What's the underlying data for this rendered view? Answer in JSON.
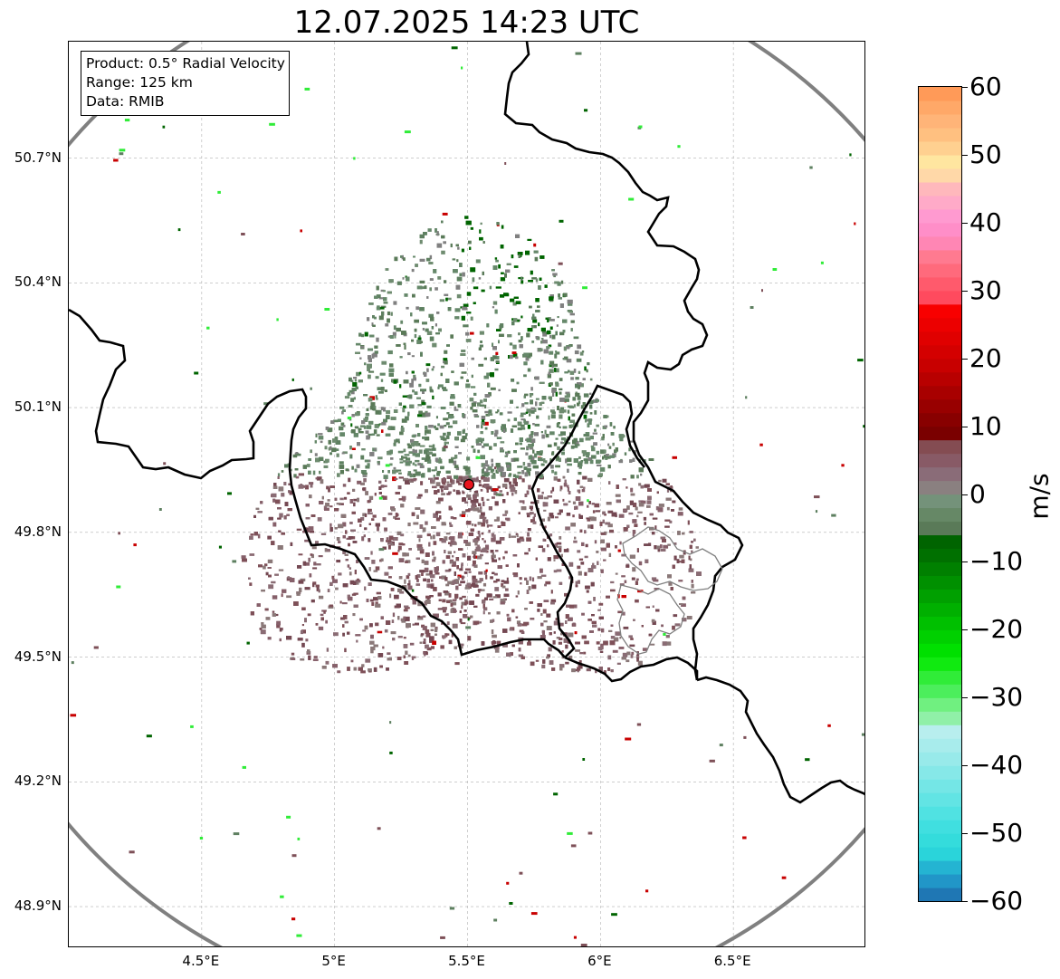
{
  "title": "12.07.2025 14:23 UTC",
  "info_box": {
    "product": "Product: 0.5° Radial Velocity",
    "range": "Range: 125 km",
    "data_source": "Data: RMIB"
  },
  "map": {
    "latitude_labels": [
      "50.7°N",
      "50.4°N",
      "50.1°N",
      "49.8°N",
      "49.5°N",
      "49.2°N",
      "48.9°N"
    ],
    "longitude_labels": [
      "4.5°E",
      "5°E",
      "5.5°E",
      "6°E",
      "6.5°E"
    ],
    "lon_range": [
      4.0,
      7.0
    ],
    "lat_range": [
      48.8,
      50.98
    ],
    "radar_site": {
      "lon": 5.505,
      "lat": 49.915
    },
    "range_ring_color": "#808080",
    "border_color": "#000000",
    "echo_colors": {
      "approaching": "#5e8060",
      "receding": "#7e5058",
      "strong_approaching": "#006400",
      "strong_receding": "#c80000"
    }
  },
  "colorbar": {
    "unit": "m/s",
    "vmin": -60,
    "vmax": 60,
    "tick_labels": [
      "60",
      "50",
      "40",
      "30",
      "20",
      "10",
      "0",
      "−10",
      "−20",
      "−30",
      "−40",
      "−50",
      "−60"
    ],
    "tick_values": [
      60,
      50,
      40,
      30,
      20,
      10,
      0,
      -10,
      -20,
      -30,
      -40,
      -50,
      -60
    ],
    "bands": [
      {
        "from": -60,
        "to": -58,
        "color": "#1f77b4"
      },
      {
        "from": -58,
        "to": -56,
        "color": "#2196c8"
      },
      {
        "from": -56,
        "to": -54,
        "color": "#24b4d2"
      },
      {
        "from": -54,
        "to": -52,
        "color": "#2ad4da"
      },
      {
        "from": -52,
        "to": -50,
        "color": "#34dcdc"
      },
      {
        "from": -50,
        "to": -48,
        "color": "#40dfe0"
      },
      {
        "from": -48,
        "to": -46,
        "color": "#50e2e2"
      },
      {
        "from": -46,
        "to": -44,
        "color": "#62e4e4"
      },
      {
        "from": -44,
        "to": -42,
        "color": "#74e6e6"
      },
      {
        "from": -42,
        "to": -40,
        "color": "#86e8e8"
      },
      {
        "from": -40,
        "to": -38,
        "color": "#98eaea"
      },
      {
        "from": -38,
        "to": -36,
        "color": "#a8ecec"
      },
      {
        "from": -36,
        "to": -34,
        "color": "#b8eeee"
      },
      {
        "from": -34,
        "to": -32,
        "color": "#90f0a8"
      },
      {
        "from": -32,
        "to": -30,
        "color": "#70f080"
      },
      {
        "from": -30,
        "to": -28,
        "color": "#4cee5c"
      },
      {
        "from": -28,
        "to": -26,
        "color": "#30ec38"
      },
      {
        "from": -26,
        "to": -24,
        "color": "#10ea10"
      },
      {
        "from": -24,
        "to": -22,
        "color": "#00e000"
      },
      {
        "from": -22,
        "to": -20,
        "color": "#00d000"
      },
      {
        "from": -20,
        "to": -18,
        "color": "#00c000"
      },
      {
        "from": -18,
        "to": -16,
        "color": "#00b000"
      },
      {
        "from": -16,
        "to": -14,
        "color": "#00a000"
      },
      {
        "from": -14,
        "to": -12,
        "color": "#009000"
      },
      {
        "from": -12,
        "to": -10,
        "color": "#008000"
      },
      {
        "from": -10,
        "to": -8,
        "color": "#007000"
      },
      {
        "from": -8,
        "to": -6,
        "color": "#006400"
      },
      {
        "from": -6,
        "to": -4,
        "color": "#5a7a58"
      },
      {
        "from": -4,
        "to": -2,
        "color": "#668866"
      },
      {
        "from": -2,
        "to": 0,
        "color": "#74927a"
      },
      {
        "from": 0,
        "to": 2,
        "color": "#8a8080"
      },
      {
        "from": 2,
        "to": 4,
        "color": "#8a6c78"
      },
      {
        "from": 4,
        "to": 6,
        "color": "#885a66"
      },
      {
        "from": 6,
        "to": 8,
        "color": "#844c52"
      },
      {
        "from": 8,
        "to": 10,
        "color": "#7a0000"
      },
      {
        "from": 10,
        "to": 12,
        "color": "#880000"
      },
      {
        "from": 12,
        "to": 14,
        "color": "#980000"
      },
      {
        "from": 14,
        "to": 16,
        "color": "#a80000"
      },
      {
        "from": 16,
        "to": 18,
        "color": "#b80000"
      },
      {
        "from": 18,
        "to": 20,
        "color": "#c80000"
      },
      {
        "from": 20,
        "to": 22,
        "color": "#d40000"
      },
      {
        "from": 22,
        "to": 24,
        "color": "#e00000"
      },
      {
        "from": 24,
        "to": 26,
        "color": "#ec0000"
      },
      {
        "from": 26,
        "to": 28,
        "color": "#f80000"
      },
      {
        "from": 28,
        "to": 30,
        "color": "#ff4a5e"
      },
      {
        "from": 30,
        "to": 32,
        "color": "#ff5a6c"
      },
      {
        "from": 32,
        "to": 34,
        "color": "#ff6a7c"
      },
      {
        "from": 34,
        "to": 36,
        "color": "#ff7a90"
      },
      {
        "from": 36,
        "to": 38,
        "color": "#ff86b4"
      },
      {
        "from": 38,
        "to": 40,
        "color": "#ff8ec8"
      },
      {
        "from": 40,
        "to": 42,
        "color": "#ff9ad0"
      },
      {
        "from": 42,
        "to": 44,
        "color": "#ffaac8"
      },
      {
        "from": 44,
        "to": 46,
        "color": "#ffb8bc"
      },
      {
        "from": 46,
        "to": 48,
        "color": "#ffd8a8"
      },
      {
        "from": 48,
        "to": 50,
        "color": "#ffe6a0"
      },
      {
        "from": 50,
        "to": 52,
        "color": "#ffd090"
      },
      {
        "from": 52,
        "to": 54,
        "color": "#ffc080"
      },
      {
        "from": 54,
        "to": 56,
        "color": "#ffb478"
      },
      {
        "from": 56,
        "to": 58,
        "color": "#ffa868"
      },
      {
        "from": 58,
        "to": 60,
        "color": "#ff9a58"
      }
    ]
  }
}
